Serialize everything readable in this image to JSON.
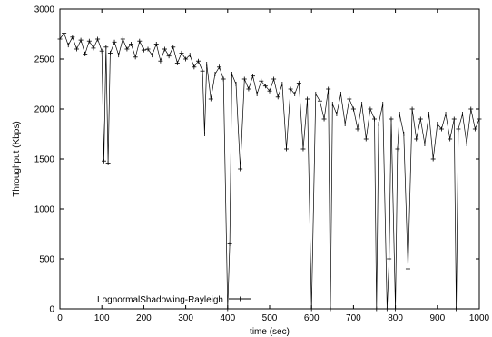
{
  "chart_data": {
    "type": "line",
    "xlabel": "time (sec)",
    "ylabel": "Throughput (Kbps)",
    "xlim": [
      0,
      1000
    ],
    "ylim": [
      0,
      3000
    ],
    "xticks": [
      "0",
      "100",
      "200",
      "300",
      "400",
      "500",
      "600",
      "700",
      "800",
      "900",
      "1000"
    ],
    "yticks": [
      "0",
      "500",
      "1000",
      "1500",
      "2000",
      "2500",
      "3000"
    ],
    "grid": false,
    "legend_position": "bottom-left",
    "series": [
      {
        "name": "LognormalShadowing-Rayleigh",
        "marker": "plus",
        "x": [
          0,
          10,
          20,
          30,
          40,
          50,
          60,
          70,
          80,
          90,
          100,
          105,
          110,
          115,
          120,
          130,
          140,
          150,
          160,
          170,
          180,
          190,
          200,
          210,
          220,
          230,
          240,
          250,
          260,
          270,
          280,
          290,
          300,
          310,
          320,
          330,
          340,
          345,
          350,
          360,
          370,
          380,
          390,
          400,
          405,
          410,
          420,
          430,
          440,
          450,
          460,
          470,
          480,
          490,
          500,
          510,
          520,
          530,
          540,
          550,
          560,
          570,
          580,
          590,
          600,
          610,
          620,
          630,
          640,
          645,
          650,
          660,
          670,
          680,
          690,
          700,
          710,
          720,
          730,
          740,
          750,
          755,
          760,
          770,
          780,
          785,
          790,
          800,
          805,
          810,
          820,
          830,
          840,
          850,
          860,
          870,
          880,
          890,
          900,
          910,
          920,
          930,
          940,
          945,
          950,
          960,
          970,
          980,
          990,
          1000
        ],
        "y": [
          2700,
          2760,
          2640,
          2720,
          2600,
          2690,
          2550,
          2680,
          2610,
          2700,
          2580,
          1480,
          2620,
          1460,
          2560,
          2670,
          2540,
          2700,
          2600,
          2650,
          2520,
          2680,
          2590,
          2600,
          2540,
          2650,
          2480,
          2600,
          2530,
          2620,
          2460,
          2560,
          2500,
          2540,
          2420,
          2480,
          2380,
          1750,
          2450,
          2100,
          2350,
          2420,
          2300,
          0,
          650,
          2350,
          2250,
          1400,
          2300,
          2200,
          2330,
          2150,
          2280,
          2230,
          2180,
          2300,
          2120,
          2250,
          1600,
          2200,
          2150,
          2260,
          1600,
          2100,
          0,
          2150,
          2080,
          1900,
          2200,
          0,
          2050,
          1950,
          2150,
          1850,
          2100,
          2000,
          1800,
          2050,
          1700,
          2000,
          1900,
          0,
          1850,
          2050,
          0,
          500,
          1900,
          0,
          1600,
          1950,
          1750,
          400,
          2000,
          1700,
          1900,
          1650,
          1950,
          1500,
          1850,
          1800,
          1950,
          1700,
          1900,
          0,
          1800,
          1950,
          1650,
          2000,
          1800,
          1900
        ]
      }
    ]
  }
}
